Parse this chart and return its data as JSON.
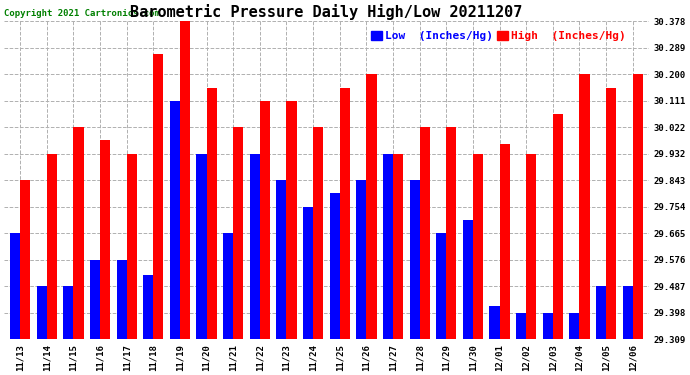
{
  "title": "Barometric Pressure Daily High/Low 20211207",
  "copyright": "Copyright 2021 Cartronics.com",
  "legend_low": "Low  (Inches/Hg)",
  "legend_high": "High  (Inches/Hg)",
  "categories": [
    "11/13",
    "11/14",
    "11/15",
    "11/16",
    "11/17",
    "11/18",
    "11/19",
    "11/20",
    "11/21",
    "11/22",
    "11/23",
    "11/24",
    "11/25",
    "11/26",
    "11/27",
    "11/28",
    "11/29",
    "11/30",
    "12/01",
    "12/02",
    "12/03",
    "12/04",
    "12/05",
    "12/06"
  ],
  "low_values": [
    29.665,
    29.487,
    29.487,
    29.576,
    29.576,
    29.525,
    30.111,
    29.932,
    29.665,
    29.932,
    29.843,
    29.754,
    29.8,
    29.843,
    29.932,
    29.843,
    29.665,
    29.71,
    29.42,
    29.398,
    29.398,
    29.398,
    29.487,
    29.487
  ],
  "high_values": [
    29.843,
    29.932,
    30.022,
    29.978,
    29.932,
    30.267,
    30.378,
    30.155,
    30.022,
    30.111,
    30.111,
    30.022,
    30.155,
    30.2,
    29.932,
    30.022,
    30.022,
    29.932,
    29.965,
    29.932,
    30.067,
    30.2,
    30.155,
    30.2
  ],
  "ylim_min": 29.309,
  "ylim_max": 30.378,
  "yticks": [
    29.309,
    29.398,
    29.487,
    29.576,
    29.665,
    29.754,
    29.843,
    29.932,
    30.022,
    30.111,
    30.2,
    30.289,
    30.378
  ],
  "bar_width": 0.38,
  "low_color": "#0000ff",
  "high_color": "#ff0000",
  "bg_color": "#ffffff",
  "grid_color": "#b0b0b0",
  "title_fontsize": 11,
  "tick_fontsize": 6.5,
  "legend_fontsize": 8
}
